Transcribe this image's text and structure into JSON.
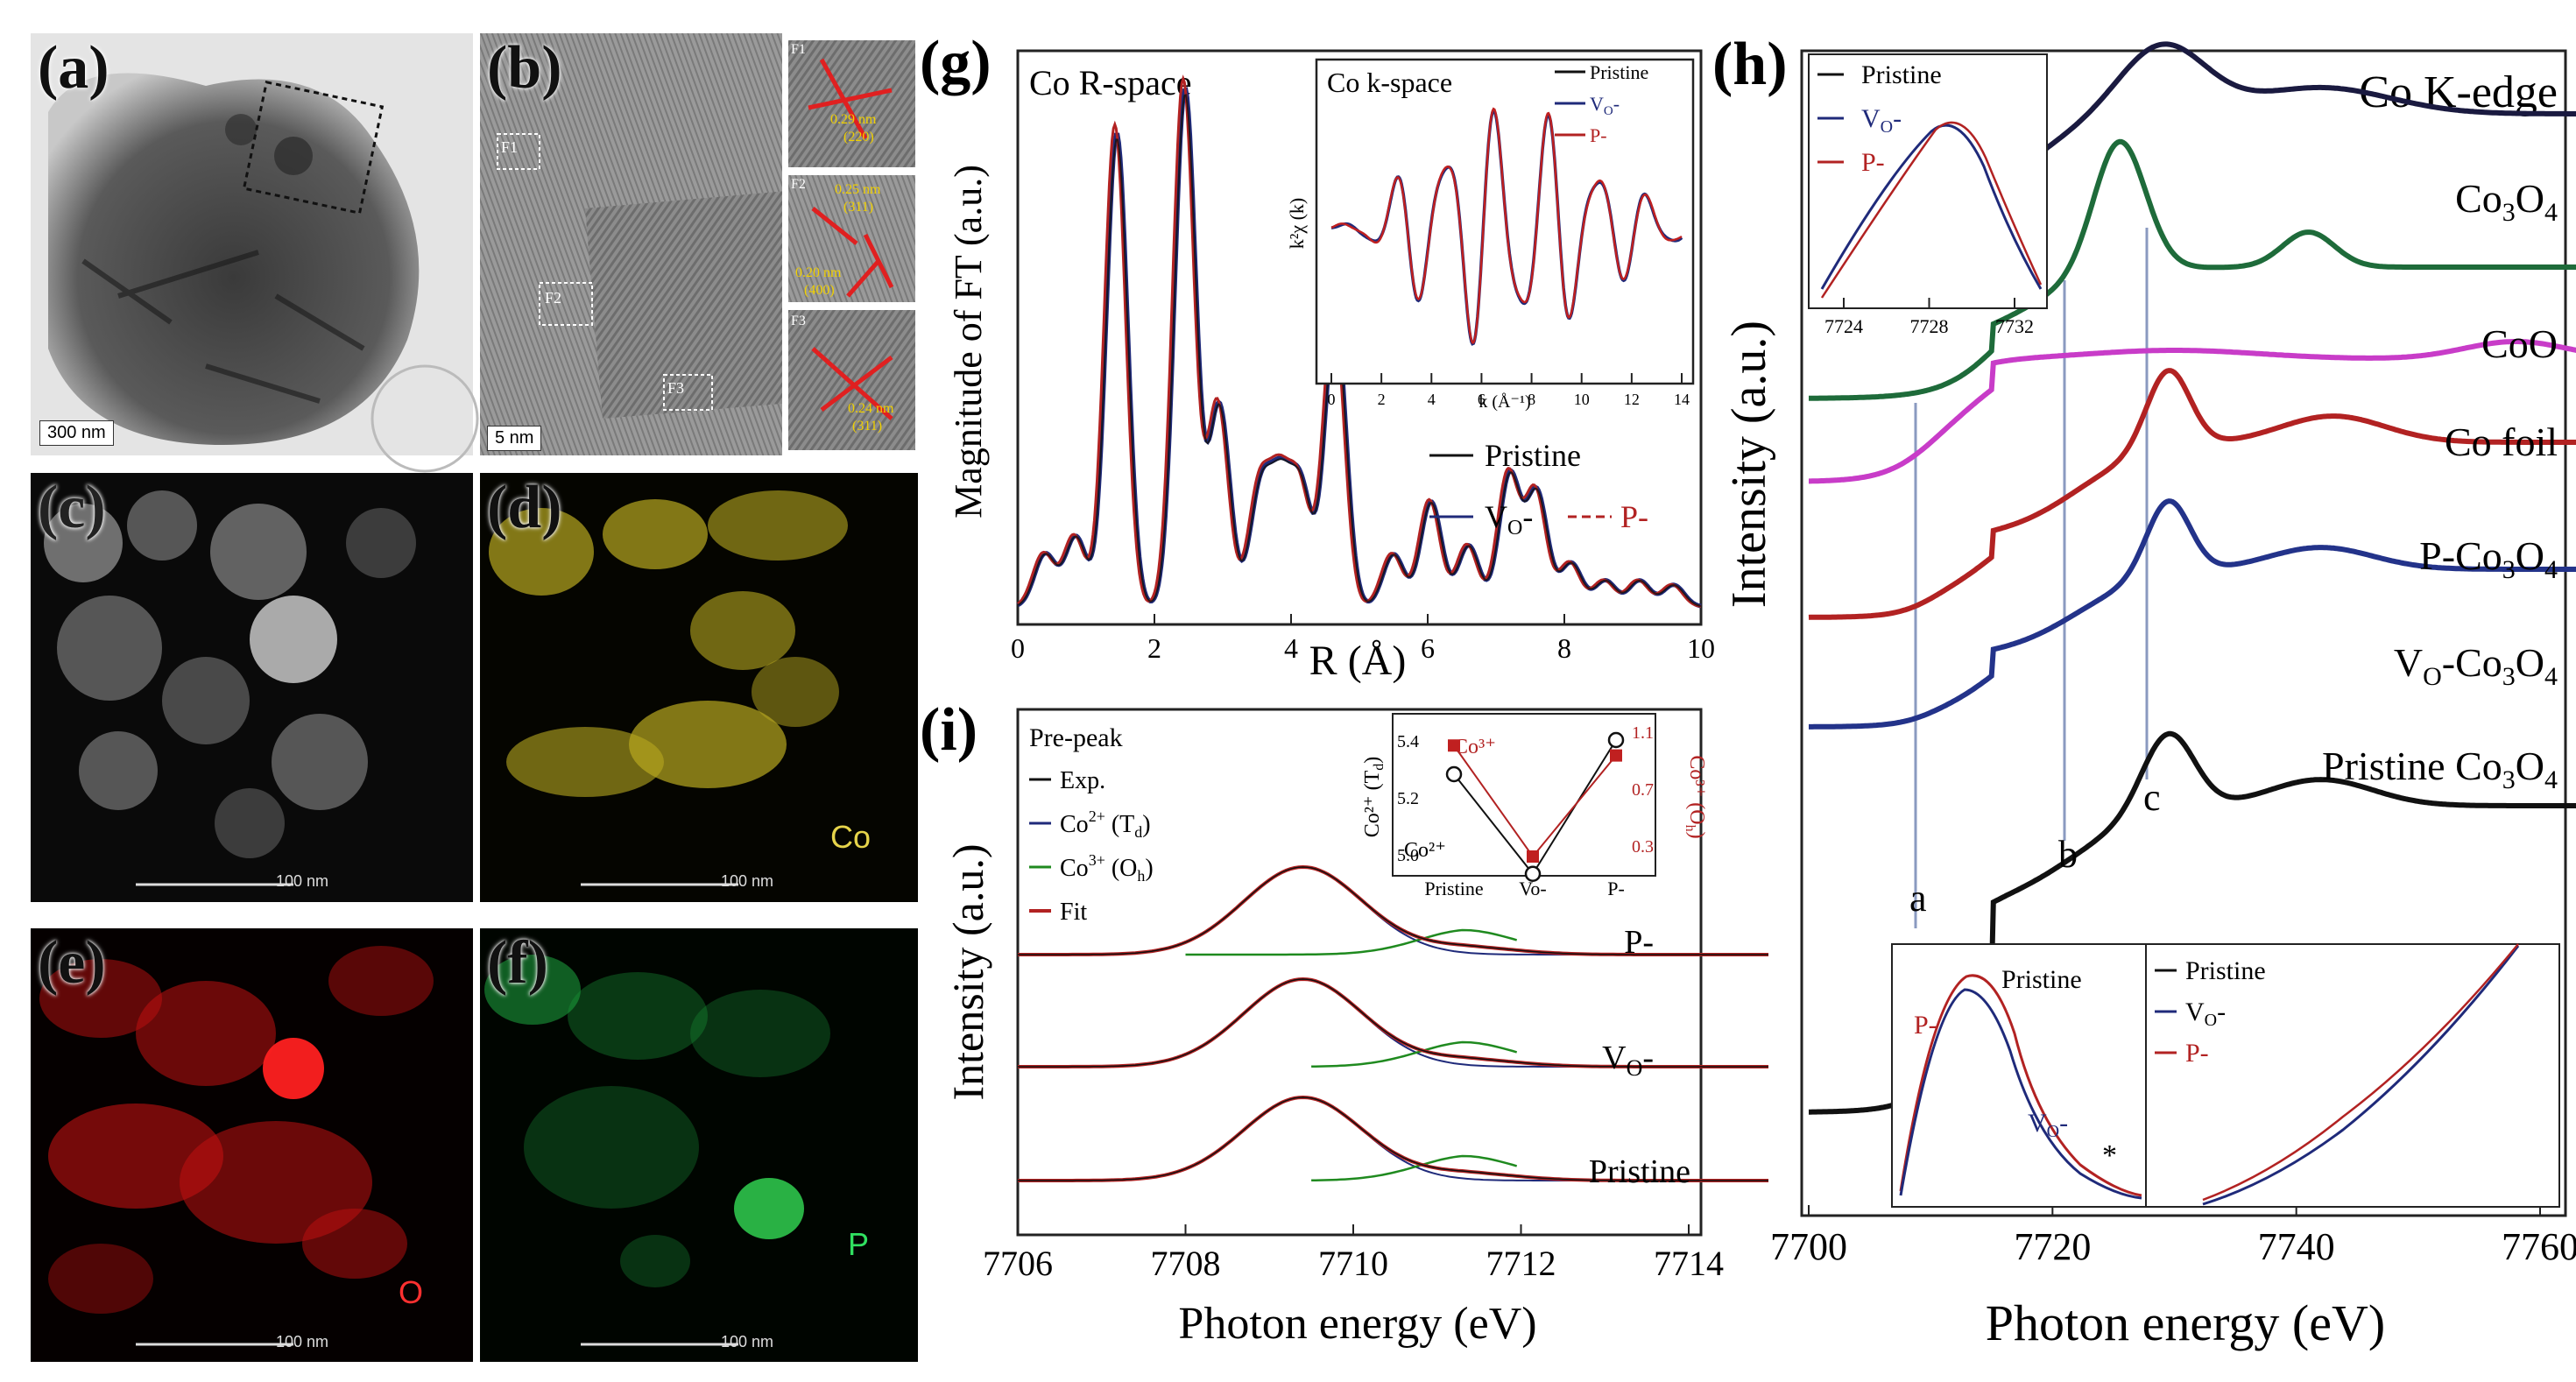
{
  "panels": {
    "a": {
      "label": "(a)",
      "scale": "300 nm"
    },
    "b": {
      "label": "(b)",
      "scale": "5 nm",
      "regions": [
        "F1",
        "F2",
        "F3"
      ],
      "insets": [
        {
          "tag": "F1",
          "d": "0.29 nm",
          "hkl": "(220)"
        },
        {
          "tag": "F2",
          "d": "0.25 nm",
          "hkl": "(311)",
          "d2": "0.20 nm",
          "hkl2": "(400)"
        },
        {
          "tag": "F3",
          "d": "0.24 nm",
          "hkl": "(311)"
        }
      ]
    },
    "c": {
      "label": "(c)",
      "scale": "100 nm"
    },
    "d": {
      "label": "(d)",
      "scale": "100 nm",
      "element": "Co"
    },
    "e": {
      "label": "(e)",
      "scale": "100 nm",
      "element": "O"
    },
    "f": {
      "label": "(f)",
      "scale": "100 nm",
      "element": "P"
    }
  },
  "colors": {
    "pristine": "#111111",
    "vo": "#1f2a7a",
    "p": "#b22222",
    "co3o4": "#1a1a40",
    "coo": "#1e6b3a",
    "cofoil": "#c83cc8",
    "pco3o4": "#b22222",
    "voco3o4": "#23338a",
    "green": "#1f8a1f"
  },
  "g": {
    "label": "(g)",
    "title": "Co  R-space",
    "xlabel": "R (Å)",
    "ylabel": "Magnitude of FT (a.u.)",
    "xticks": [
      "0",
      "2",
      "4",
      "6",
      "8",
      "10"
    ],
    "legend": {
      "pristine": "Pristine",
      "vo": "V",
      "vo_sub": "O",
      "vo_suf": "-",
      "p": "P-"
    },
    "inset": {
      "title": "Co  k-space",
      "ylabel": "k²χ (k)",
      "xlabel": "k (Å⁻¹)",
      "xticks": [
        "0",
        "2",
        "4",
        "6",
        "8",
        "10",
        "12",
        "14"
      ],
      "legend": {
        "pristine": "Pristine",
        "vo": "V",
        "vo_sub": "O",
        "vo_suf": "-",
        "p": "P-"
      }
    }
  },
  "h": {
    "label": "(h)",
    "title": "Co  K-edge",
    "xlabel": "Photon energy (eV)",
    "ylabel": "Intensity (a.u.)",
    "xticks": [
      "7700",
      "7720",
      "7740",
      "7760"
    ],
    "curves": [
      {
        "name": "Co",
        "sub": "3",
        "mid": "O",
        "sub2": "4"
      },
      {
        "name": "CoO"
      },
      {
        "name": "Co foil"
      },
      {
        "name": "P-Co",
        "sub": "3",
        "mid": "O",
        "sub2": "4"
      },
      {
        "name": "V",
        "sub": "O",
        "mid": "-Co",
        "sub2": "3",
        "tail": "O",
        "sub3": "4"
      },
      {
        "name": "Pristine Co",
        "sub": "3",
        "mid": "O",
        "sub2": "4"
      }
    ],
    "markers": [
      "a",
      "b",
      "c"
    ],
    "inset_top": {
      "legend": {
        "pristine": "Pristine",
        "vo": "V",
        "vo_sub": "O",
        "vo_suf": "-",
        "p": "P-"
      },
      "xticks": [
        "7724",
        "7728",
        "7732"
      ]
    },
    "inset_bottom_left": {
      "pristine": "Pristine",
      "p": "P-",
      "vo": "V",
      "vo_sub": "O",
      "vo_suf": "-",
      "star": "*"
    },
    "inset_bottom_right": {
      "pristine": "Pristine",
      "vo": "V",
      "vo_sub": "O",
      "vo_suf": "-",
      "p": "P-"
    }
  },
  "i": {
    "label": "(i)",
    "xlabel": "Photon energy (eV)",
    "ylabel": "Intensity (a.u.)",
    "xticks": [
      "7706",
      "7708",
      "7710",
      "7712",
      "7714"
    ],
    "legend_title": "Pre-peak",
    "legend": [
      {
        "text": "Exp."
      },
      {
        "text": "Co",
        "sup": "2+",
        "tail": " (T",
        "sub": "d",
        "end": ")"
      },
      {
        "text": "Co",
        "sup": "3+",
        "tail": " (O",
        "sub": "h",
        "end": ")"
      },
      {
        "text": "Fit"
      }
    ],
    "curve_labels": [
      {
        "text": "P-"
      },
      {
        "text": "V",
        "sub": "O",
        "suf": "-"
      },
      {
        "text": "Pristine"
      }
    ],
    "inset": {
      "ylabel_left": "Co²⁺ (T",
      "ylabel_left_sub": "d",
      "ylabel_left_end": ")",
      "ylabel_right": "Co³⁺ (O",
      "ylabel_right_sub": "h",
      "ylabel_right_end": ")",
      "yticks_left": [
        "5.4",
        "5.2",
        "5.0"
      ],
      "yticks_right": [
        "1.1",
        "0.7",
        "0.3"
      ],
      "xticks": [
        "Pristine",
        "Vo-",
        "P-"
      ],
      "co2_label": "Co²⁺",
      "co3_label": "Co³⁺",
      "co2_values": [
        5.28,
        4.93,
        5.4
      ],
      "co3_values": [
        1.0,
        0.22,
        0.93
      ]
    }
  }
}
